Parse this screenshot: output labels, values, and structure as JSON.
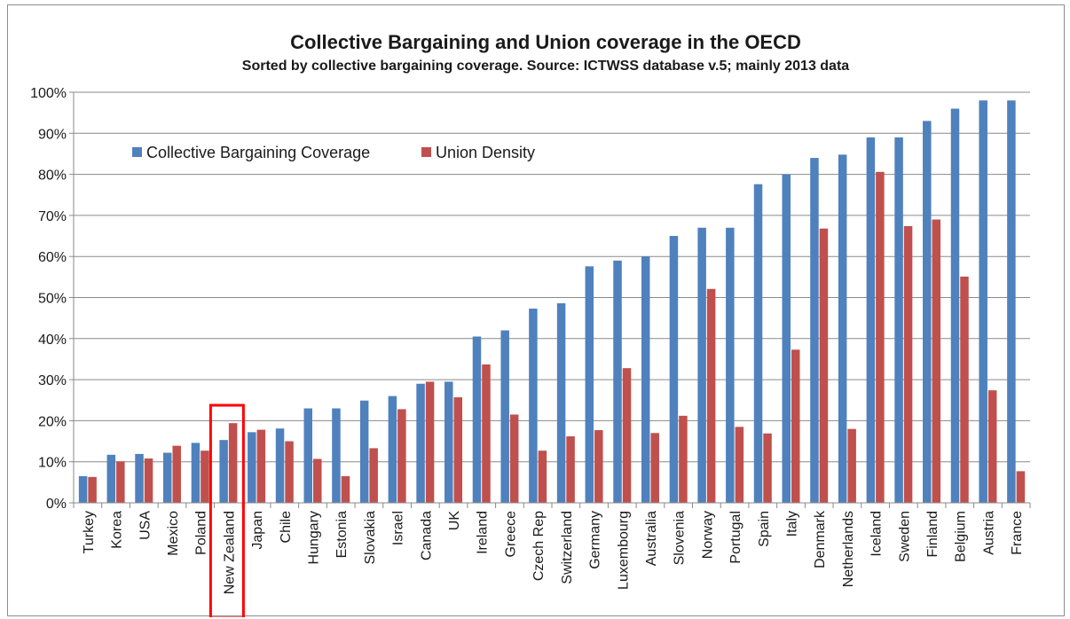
{
  "chart_data": {
    "type": "bar",
    "title": "Collective Bargaining and Union coverage in the OECD",
    "subtitle": "Sorted by collective bargaining coverage. Source: ICTWSS database v.5; mainly 2013 data",
    "xlabel": "",
    "ylabel": "",
    "ylim": [
      0,
      100
    ],
    "yticks": [
      "0%",
      "10%",
      "20%",
      "30%",
      "40%",
      "50%",
      "60%",
      "70%",
      "80%",
      "90%",
      "100%"
    ],
    "grid": true,
    "legend_position": "top-left",
    "categories": [
      "Turkey",
      "Korea",
      "USA",
      "Mexico",
      "Poland",
      "New Zealand",
      "Japan",
      "Chile",
      "Hungary",
      "Estonia",
      "Slovakia",
      "Israel",
      "Canada",
      "UK",
      "Ireland",
      "Greece",
      "Czech Rep",
      "Switzerland",
      "Germany",
      "Luxembourg",
      "Australia",
      "Slovenia",
      "Norway",
      "Portugal",
      "Spain",
      "Italy",
      "Denmark",
      "Netherlands",
      "Iceland",
      "Sweden",
      "Finland",
      "Belgium",
      "Austria",
      "France"
    ],
    "series": [
      {
        "name": "Collective Bargaining Coverage",
        "color": "#4f81bd",
        "values": [
          6.5,
          11.7,
          11.9,
          12.2,
          14.6,
          15.3,
          17.2,
          18.1,
          23.0,
          23.0,
          24.9,
          26.0,
          29.0,
          29.5,
          40.5,
          42.0,
          47.3,
          48.6,
          57.6,
          59.0,
          60.0,
          65.0,
          67.0,
          67.0,
          77.6,
          80.0,
          84.0,
          84.8,
          89.0,
          89.0,
          93.0,
          96.0,
          98.0,
          98.0
        ]
      },
      {
        "name": "Union Density",
        "color": "#c0504d",
        "values": [
          6.3,
          10.1,
          10.8,
          13.9,
          12.7,
          19.4,
          17.8,
          15.0,
          10.7,
          6.5,
          13.3,
          22.8,
          29.5,
          25.7,
          33.7,
          21.5,
          12.7,
          16.2,
          17.7,
          32.8,
          17.0,
          21.2,
          52.1,
          18.5,
          16.9,
          37.3,
          66.8,
          18.0,
          80.6,
          67.4,
          69.0,
          55.1,
          27.4,
          7.7
        ]
      }
    ],
    "annotations": [
      {
        "type": "highlight-box",
        "category": "New Zealand",
        "color": "#ff0000"
      }
    ]
  }
}
